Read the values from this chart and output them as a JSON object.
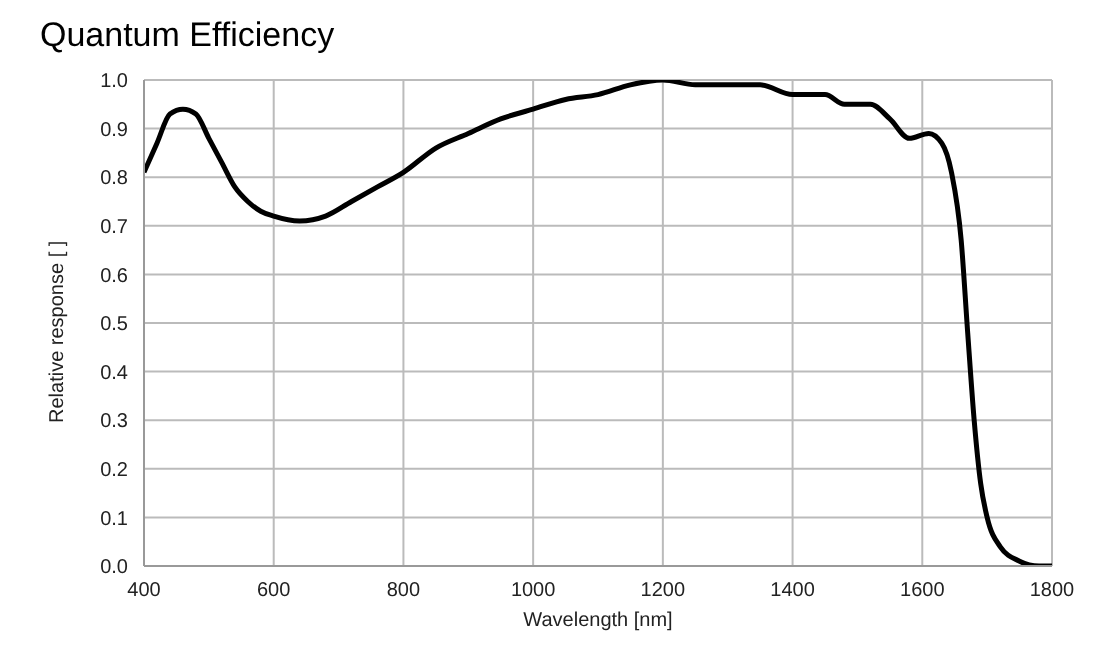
{
  "chart_data": {
    "type": "line",
    "title": "Quantum Efficiency",
    "xlabel": "Wavelength [nm]",
    "ylabel": "Relative response [ ]",
    "xlim": [
      400,
      1800
    ],
    "xticks": [
      400,
      600,
      800,
      1000,
      1200,
      1400,
      1600,
      1800
    ],
    "ylim": [
      0,
      1
    ],
    "yticks": [
      {
        "value": 0,
        "label": "0.0"
      },
      0.1,
      0.2,
      0.3,
      0.4,
      0.5,
      0.6,
      0.7,
      0.8,
      0.9,
      {
        "value": 1,
        "label": "1.0"
      }
    ],
    "grid": true,
    "legend": false,
    "marker": "none",
    "line_style": "solid",
    "series": [
      {
        "color": "#000000",
        "x": [
          400,
          420,
          440,
          460,
          480,
          500,
          520,
          540,
          560,
          580,
          600,
          640,
          680,
          720,
          760,
          800,
          850,
          900,
          950,
          1000,
          1050,
          1100,
          1150,
          1200,
          1250,
          1300,
          1350,
          1400,
          1450,
          1480,
          1520,
          1550,
          1580,
          1610,
          1630,
          1645,
          1660,
          1670,
          1680,
          1690,
          1700,
          1720,
          1750,
          1780,
          1800
        ],
        "values": [
          0.81,
          0.87,
          0.93,
          0.94,
          0.93,
          0.88,
          0.83,
          0.78,
          0.75,
          0.73,
          0.72,
          0.71,
          0.72,
          0.75,
          0.78,
          0.81,
          0.86,
          0.89,
          0.92,
          0.94,
          0.96,
          0.97,
          0.99,
          1.0,
          0.99,
          0.99,
          0.99,
          0.97,
          0.97,
          0.95,
          0.95,
          0.92,
          0.88,
          0.89,
          0.87,
          0.81,
          0.67,
          0.48,
          0.3,
          0.17,
          0.1,
          0.04,
          0.01,
          0.0,
          0.0
        ]
      }
    ]
  }
}
